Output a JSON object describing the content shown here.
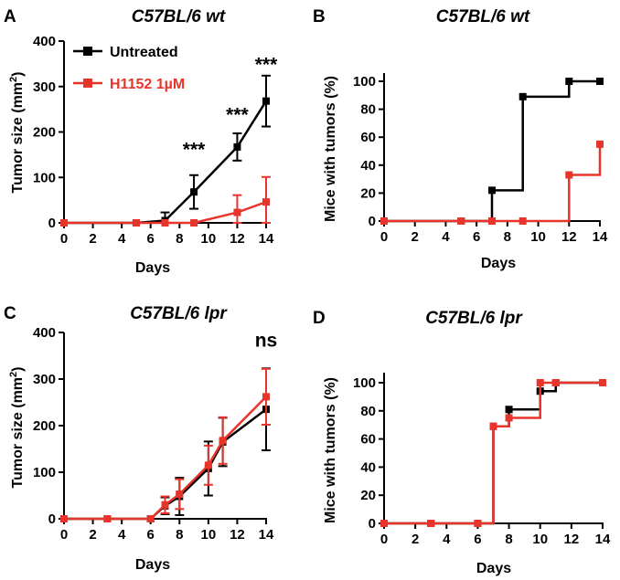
{
  "colors": {
    "untreated": "#000000",
    "h1152": "#e8352b"
  },
  "legend": [
    {
      "name": "Untreated",
      "color": "#000000"
    },
    {
      "name": "H1152 1µM",
      "color": "#e8352b"
    }
  ],
  "chart_data": [
    {
      "panel": "A",
      "type": "line",
      "title": "C57BL/6 wt",
      "xlabel": "Days",
      "ylabel": "Tumor size (mm²)",
      "ylabel_main": "Tumor size (mm",
      "ylabel_sup": "2",
      "ylabel_end": ")",
      "xlim": [
        0,
        14
      ],
      "ylim": [
        0,
        400
      ],
      "xticks": [
        0,
        2,
        4,
        6,
        8,
        10,
        12,
        14
      ],
      "yticks": [
        0,
        100,
        200,
        300,
        400
      ],
      "legend_position": "top-left",
      "series": [
        {
          "name": "Untreated",
          "color": "#000000",
          "x": [
            0,
            5,
            7,
            9,
            12,
            14
          ],
          "y": [
            0,
            0,
            5,
            68,
            167,
            268
          ],
          "err": [
            0,
            0,
            18,
            37,
            30,
            56
          ]
        },
        {
          "name": "H1152 1µM",
          "color": "#e8352b",
          "x": [
            0,
            5,
            7,
            9,
            12,
            14
          ],
          "y": [
            0,
            0,
            0,
            0,
            23,
            46
          ],
          "err": [
            0,
            0,
            0,
            0,
            38,
            55
          ]
        }
      ],
      "annotations": [
        {
          "text": "***",
          "x": 9,
          "y": 148
        },
        {
          "text": "***",
          "x": 12,
          "y": 224
        },
        {
          "text": "***",
          "x": 14,
          "y": 335
        }
      ]
    },
    {
      "panel": "B",
      "type": "line",
      "step": true,
      "title": "C57BL/6 wt",
      "xlabel": "Days",
      "ylabel": "Mice with tumors (%)",
      "xlim": [
        0,
        14
      ],
      "ylim": [
        0,
        100
      ],
      "xticks": [
        0,
        2,
        4,
        6,
        8,
        10,
        12,
        14
      ],
      "yticks": [
        0,
        20,
        40,
        60,
        80,
        100
      ],
      "series": [
        {
          "name": "Untreated",
          "color": "#000000",
          "x": [
            0,
            5,
            7,
            9,
            12,
            14
          ],
          "y": [
            0,
            0,
            22,
            89,
            100,
            100
          ]
        },
        {
          "name": "H1152 1µM",
          "color": "#e8352b",
          "x": [
            0,
            5,
            7,
            9,
            12,
            14
          ],
          "y": [
            0,
            0,
            0,
            0,
            33,
            55
          ]
        }
      ]
    },
    {
      "panel": "C",
      "type": "line",
      "title": "C57BL/6 lpr",
      "xlabel": "Days",
      "ylabel": "Tumor size (mm²)",
      "ylabel_main": "Tumor size (mm",
      "ylabel_sup": "2",
      "ylabel_end": ")",
      "xlim": [
        0,
        14
      ],
      "ylim": [
        0,
        400
      ],
      "xticks": [
        0,
        2,
        4,
        6,
        8,
        10,
        12,
        14
      ],
      "yticks": [
        0,
        100,
        200,
        300,
        400
      ],
      "series": [
        {
          "name": "Untreated",
          "color": "#000000",
          "x": [
            0,
            3,
            6,
            7,
            8,
            10,
            11,
            14
          ],
          "y": [
            0,
            0,
            0,
            28,
            48,
            108,
            165,
            235
          ],
          "err": [
            0,
            0,
            0,
            18,
            40,
            58,
            52,
            88
          ]
        },
        {
          "name": "H1152 1µM",
          "color": "#e8352b",
          "x": [
            0,
            3,
            6,
            7,
            8,
            10,
            11,
            14
          ],
          "y": [
            0,
            0,
            0,
            30,
            53,
            115,
            168,
            262
          ],
          "err": [
            0,
            0,
            0,
            18,
            32,
            42,
            50,
            60
          ]
        }
      ],
      "annotations": [
        {
          "text": "ns",
          "x": 14,
          "y": 370
        }
      ]
    },
    {
      "panel": "D",
      "type": "line",
      "step": true,
      "title": "C57BL/6 lpr",
      "xlabel": "Days",
      "ylabel": "Mice with tumors (%)",
      "xlim": [
        0,
        14
      ],
      "ylim": [
        0,
        100
      ],
      "xticks": [
        0,
        2,
        4,
        6,
        8,
        10,
        12,
        14
      ],
      "yticks": [
        0,
        20,
        40,
        60,
        80,
        100
      ],
      "series": [
        {
          "name": "Untreated",
          "color": "#000000",
          "x": [
            0,
            3,
            6,
            7,
            8,
            10,
            11,
            14
          ],
          "y": [
            0,
            0,
            0,
            69,
            81,
            94,
            100,
            100
          ]
        },
        {
          "name": "H1152 1µM",
          "color": "#e8352b",
          "x": [
            0,
            3,
            6,
            7,
            8,
            10,
            11,
            14
          ],
          "y": [
            0,
            0,
            0,
            69,
            75,
            100,
            100,
            100
          ]
        }
      ]
    }
  ]
}
